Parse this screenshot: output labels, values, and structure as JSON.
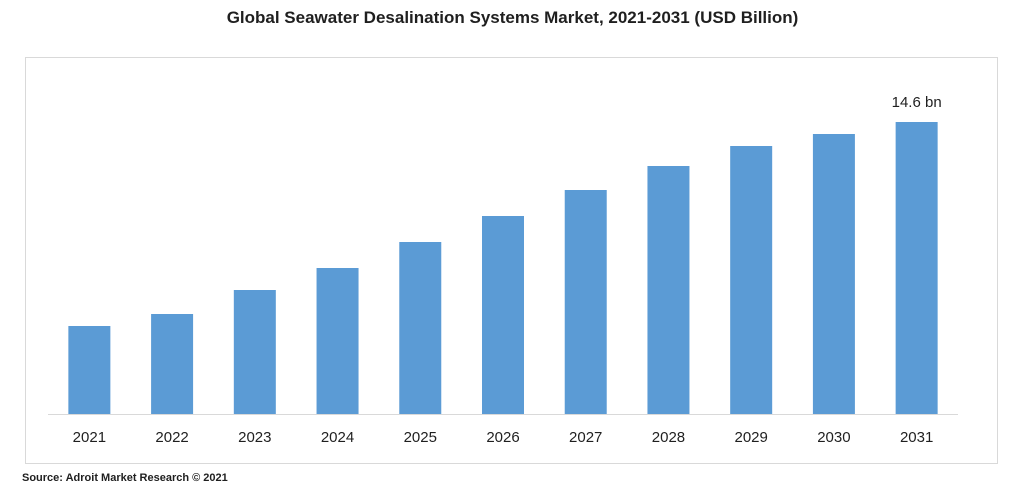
{
  "title": "Global Seawater Desalination Systems Market, 2021-2031 (USD Billion)",
  "source": "Source: Adroit Market Research © 2021",
  "chart_data": {
    "type": "bar",
    "title": "Global Seawater Desalination Systems Market, 2021-2031 (USD Billion)",
    "categories": [
      "2021",
      "2022",
      "2023",
      "2024",
      "2025",
      "2026",
      "2027",
      "2028",
      "2029",
      "2030",
      "2031"
    ],
    "values": [
      4.4,
      5.0,
      6.2,
      7.3,
      8.6,
      9.9,
      11.2,
      12.4,
      13.4,
      14.0,
      14.6
    ],
    "data_labels": [
      null,
      null,
      null,
      null,
      null,
      null,
      null,
      null,
      null,
      null,
      "14.6 bn"
    ],
    "bar_color": "#5b9bd5",
    "ylim": [
      0,
      15.5
    ],
    "grid": false,
    "legend": "none"
  }
}
